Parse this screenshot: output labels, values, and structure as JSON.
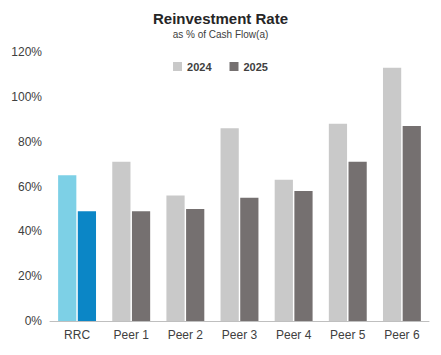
{
  "chart_data": {
    "type": "bar",
    "title": "Reinvestment Rate",
    "subtitle": "as % of Cash Flow(a)",
    "categories": [
      "RRC",
      "Peer 1",
      "Peer 2",
      "Peer 3",
      "Peer 4",
      "Peer 5",
      "Peer 6"
    ],
    "series": [
      {
        "name": "2024",
        "color": "#c9c9c9",
        "colors": [
          "#7dd0e6",
          "#c9c9c9",
          "#c9c9c9",
          "#c9c9c9",
          "#c9c9c9",
          "#c9c9c9",
          "#c9c9c9"
        ],
        "values": [
          65,
          71,
          56,
          86,
          63,
          88,
          113
        ]
      },
      {
        "name": "2025",
        "color": "#757070",
        "colors": [
          "#0b86c6",
          "#757070",
          "#757070",
          "#757070",
          "#757070",
          "#757070",
          "#757070"
        ],
        "values": [
          49,
          49,
          50,
          55,
          58,
          71,
          87
        ]
      }
    ],
    "ylim": [
      0,
      120
    ],
    "yticks": [
      {
        "value": 0,
        "label": "0%"
      },
      {
        "value": 20,
        "label": "20%"
      },
      {
        "value": 40,
        "label": "40%"
      },
      {
        "value": 60,
        "label": "60%"
      },
      {
        "value": 80,
        "label": "80%"
      },
      {
        "value": 100,
        "label": "100%"
      },
      {
        "value": 120,
        "label": "120%"
      }
    ],
    "grid": false,
    "legend": "top"
  }
}
